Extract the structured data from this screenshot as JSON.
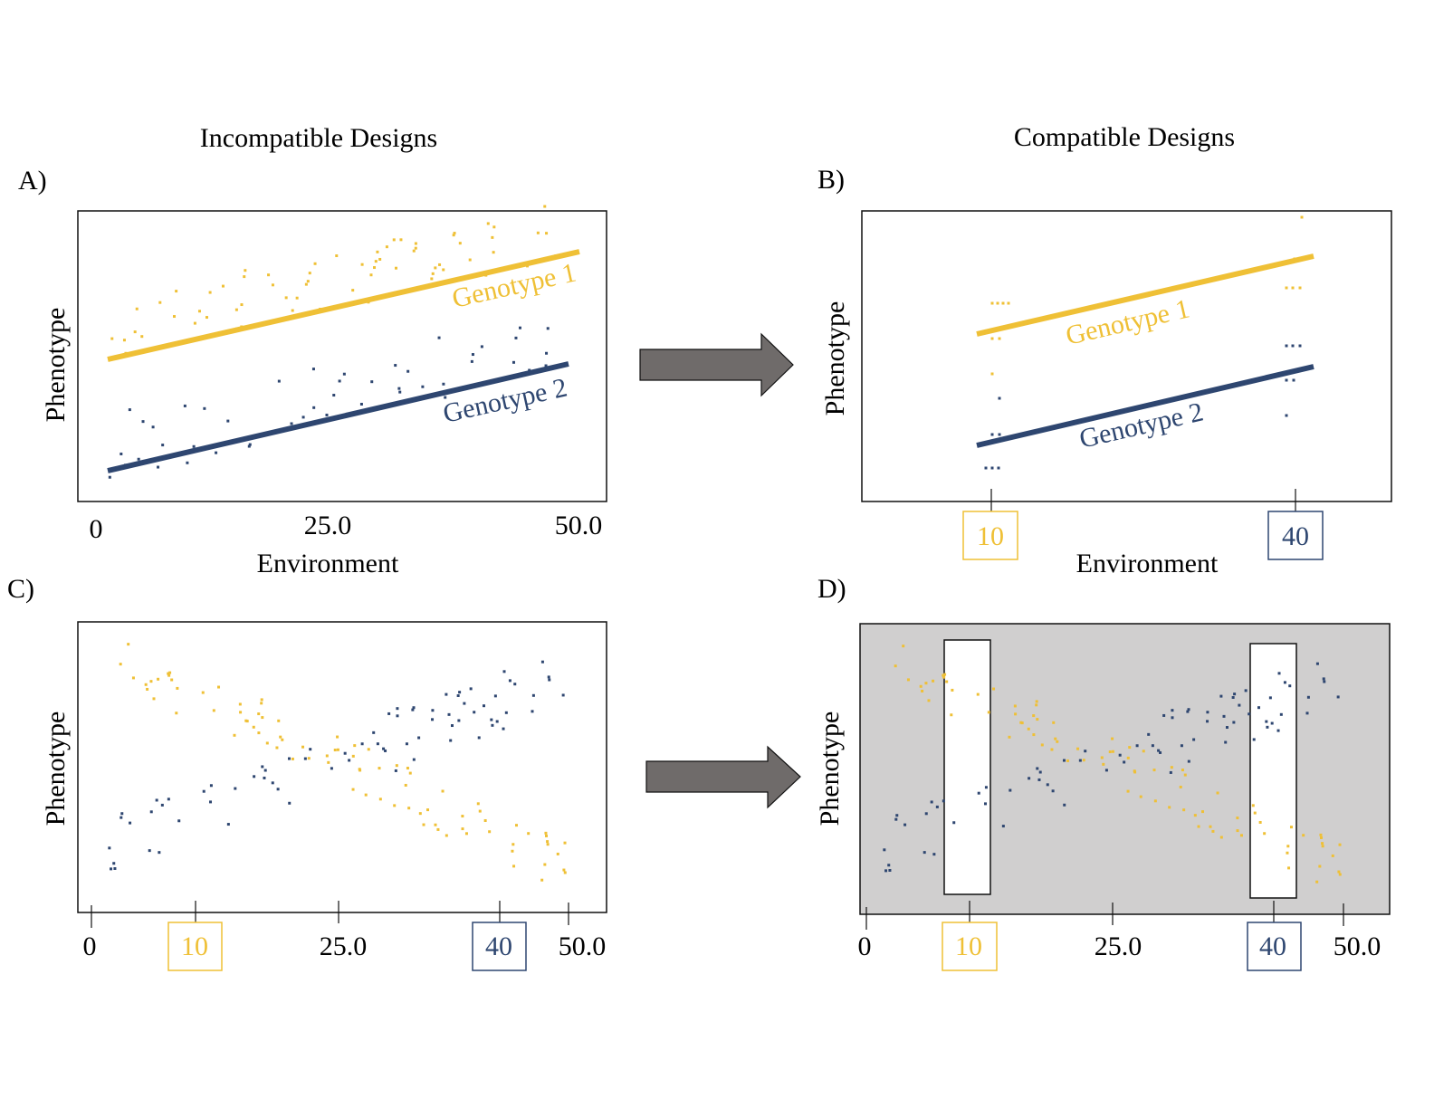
{
  "headings": {
    "left": "Incompatible Designs",
    "right": "Compatible Designs"
  },
  "colors": {
    "genotype1": "#EFC036",
    "genotype2": "#2E4670",
    "arrow": "#6F6B6A",
    "shade": "#D0CFCF",
    "frame": "#111111"
  },
  "panel_labels": {
    "a": "A)",
    "b": "B)",
    "c": "C)",
    "d": "D)"
  },
  "axis": {
    "ylabel": "Phenotype",
    "xlabel": "Environment"
  },
  "line_labels": {
    "g1": "Genotype 1",
    "g2": "Genotype 2"
  },
  "ticks": {
    "zero": "0",
    "mid": "25.0",
    "max": "50.0",
    "ten": "10",
    "forty": "40"
  }
}
